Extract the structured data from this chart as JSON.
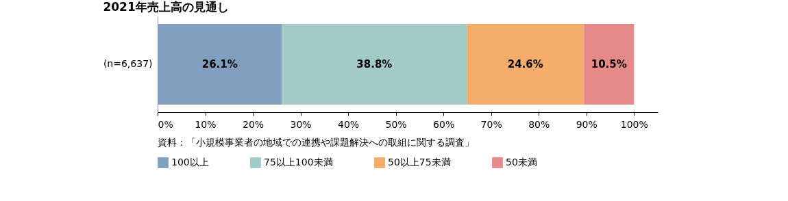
{
  "chart_data": {
    "type": "bar",
    "orientation": "horizontal",
    "stacked": true,
    "title": "2021年売上高の見通し",
    "categories": [
      "(n=6,637)"
    ],
    "series": [
      {
        "name": "100以上",
        "color": "#819fbe",
        "values": [
          26.1
        ],
        "value_labels": [
          "26.1%"
        ]
      },
      {
        "name": "75以上100未満",
        "color": "#a2cbc7",
        "values": [
          38.8
        ],
        "value_labels": [
          "38.8%"
        ]
      },
      {
        "name": "50以上75未満",
        "color": "#f4ad6b",
        "values": [
          24.6
        ],
        "value_labels": [
          "24.6%"
        ]
      },
      {
        "name": "50未満",
        "color": "#e68a89",
        "values": [
          10.5
        ],
        "value_labels": [
          "10.5%"
        ]
      }
    ],
    "xlim": [
      0,
      105
    ],
    "xticks": [
      {
        "value": 0,
        "label": "0%"
      },
      {
        "value": 10,
        "label": "10%"
      },
      {
        "value": 20,
        "label": "20%"
      },
      {
        "value": 30,
        "label": "30%"
      },
      {
        "value": 40,
        "label": "40%"
      },
      {
        "value": 50,
        "label": "50%"
      },
      {
        "value": 60,
        "label": "60%"
      },
      {
        "value": 70,
        "label": "70%"
      },
      {
        "value": 80,
        "label": "80%"
      },
      {
        "value": 90,
        "label": "90%"
      },
      {
        "value": 100,
        "label": "100%"
      }
    ],
    "grid": false,
    "legend": "bottom",
    "annotations": [
      "資料：「小規模事業者の地域での連携や課題解決への取組に関する調査」"
    ]
  }
}
